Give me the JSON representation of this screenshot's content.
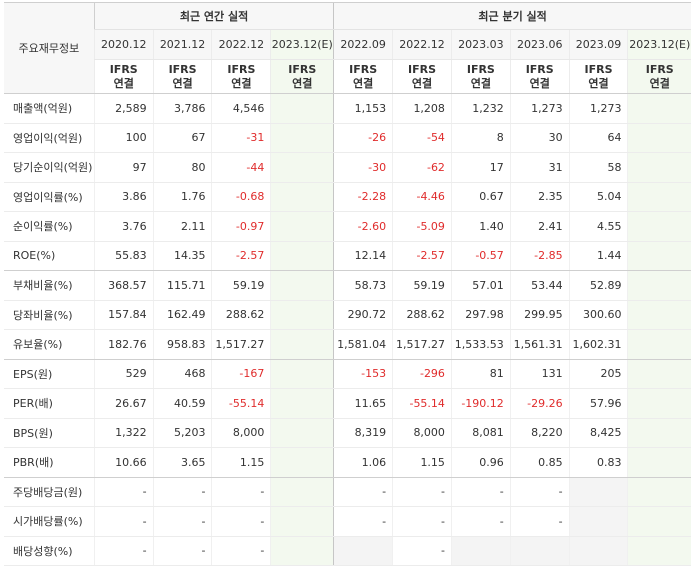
{
  "header": {
    "label": "주요재무정보",
    "annual_title": "최근 연간 실적",
    "quarter_title": "최근 분기 실적",
    "annual_periods": [
      "2020.12",
      "2021.12",
      "2022.12",
      "2023.12(E)"
    ],
    "quarter_periods": [
      "2022.09",
      "2022.12",
      "2023.03",
      "2023.06",
      "2023.09",
      "2023.12(E)"
    ],
    "ifrs_top": "IFRS",
    "ifrs_bottom": "연결"
  },
  "rows": [
    {
      "label": "매출액(억원)",
      "values": [
        "2,589",
        "3,786",
        "4,546",
        "",
        "1,153",
        "1,208",
        "1,232",
        "1,273",
        "1,273",
        ""
      ]
    },
    {
      "label": "영업이익(억원)",
      "values": [
        "100",
        "67",
        "-31",
        "",
        "-26",
        "-54",
        "8",
        "30",
        "64",
        ""
      ]
    },
    {
      "label": "당기순이익(억원)",
      "values": [
        "97",
        "80",
        "-44",
        "",
        "-30",
        "-62",
        "17",
        "31",
        "58",
        ""
      ]
    },
    {
      "label": "영업이익률(%)",
      "values": [
        "3.86",
        "1.76",
        "-0.68",
        "",
        "-2.28",
        "-4.46",
        "0.67",
        "2.35",
        "5.04",
        ""
      ]
    },
    {
      "label": "순이익률(%)",
      "values": [
        "3.76",
        "2.11",
        "-0.97",
        "",
        "-2.60",
        "-5.09",
        "1.40",
        "2.41",
        "4.55",
        ""
      ]
    },
    {
      "label": "ROE(%)",
      "values": [
        "55.83",
        "14.35",
        "-2.57",
        "",
        "12.14",
        "-2.57",
        "-0.57",
        "-2.85",
        "1.44",
        ""
      ]
    },
    {
      "label": "부채비율(%)",
      "values": [
        "368.57",
        "115.71",
        "59.19",
        "",
        "58.73",
        "59.19",
        "57.01",
        "53.44",
        "52.89",
        ""
      ]
    },
    {
      "label": "당좌비율(%)",
      "values": [
        "157.84",
        "162.49",
        "288.62",
        "",
        "290.72",
        "288.62",
        "297.98",
        "299.95",
        "300.60",
        ""
      ]
    },
    {
      "label": "유보율(%)",
      "values": [
        "182.76",
        "958.83",
        "1,517.27",
        "",
        "1,581.04",
        "1,517.27",
        "1,533.53",
        "1,561.31",
        "1,602.31",
        ""
      ]
    },
    {
      "label": "EPS(원)",
      "values": [
        "529",
        "468",
        "-167",
        "",
        "-153",
        "-296",
        "81",
        "131",
        "205",
        ""
      ]
    },
    {
      "label": "PER(배)",
      "values": [
        "26.67",
        "40.59",
        "-55.14",
        "",
        "11.65",
        "-55.14",
        "-190.12",
        "-29.26",
        "57.96",
        ""
      ]
    },
    {
      "label": "BPS(원)",
      "values": [
        "1,322",
        "5,203",
        "8,000",
        "",
        "8,319",
        "8,000",
        "8,081",
        "8,220",
        "8,425",
        ""
      ]
    },
    {
      "label": "PBR(배)",
      "values": [
        "10.66",
        "3.65",
        "1.15",
        "",
        "1.06",
        "1.15",
        "0.96",
        "0.85",
        "0.83",
        ""
      ]
    },
    {
      "label": "주당배당금(원)",
      "values": [
        "-",
        "-",
        "-",
        "",
        "-",
        "-",
        "-",
        "-",
        "",
        ""
      ]
    },
    {
      "label": "시가배당률(%)",
      "values": [
        "-",
        "-",
        "-",
        "",
        "-",
        "-",
        "-",
        "-",
        "",
        ""
      ]
    },
    {
      "label": "배당성향(%)",
      "values": [
        "-",
        "-",
        "-",
        "",
        "",
        "-",
        "",
        "",
        "",
        ""
      ]
    }
  ],
  "gray_cells": {
    "13": [
      8
    ],
    "14": [
      8
    ],
    "15": [
      4,
      6,
      7,
      8
    ]
  },
  "colors": {
    "negative": "#e02c2c",
    "ifrs": "#f26c20",
    "estimate_bg": "#f3f9ef",
    "empty_bg": "#f4f4f4"
  }
}
